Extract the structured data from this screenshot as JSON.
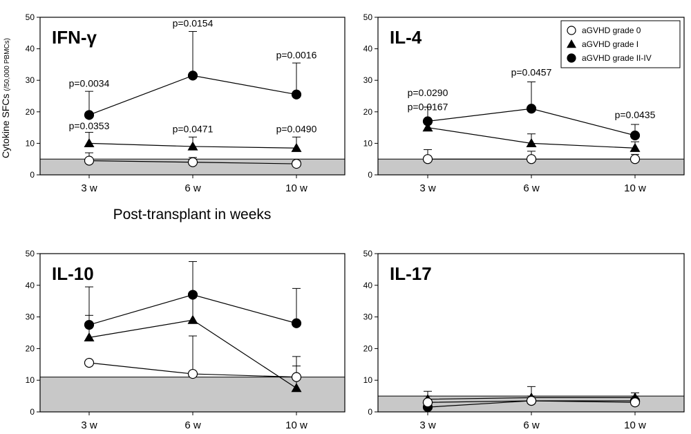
{
  "ylabel": "Cytokine SFCs",
  "ylabel_unit": "(/50,000 PBMCs)",
  "xlabel": "Post-transplant in weeks",
  "colors": {
    "shade": "#c8c8c8",
    "line": "#000000",
    "open_fill": "#ffffff"
  },
  "legend": {
    "placement": "top-right of IL-4 panel",
    "entries": [
      {
        "label": "aGVHD grade 0",
        "marker": "open-circle"
      },
      {
        "label": "aGVHD grade I",
        "marker": "filled-triangle"
      },
      {
        "label": "aGVHD grade II-IV",
        "marker": "filled-circle"
      }
    ]
  },
  "chart_data": [
    {
      "type": "line",
      "title": "IFN-γ",
      "categories": [
        "3 w",
        "6 w",
        "10 w"
      ],
      "ylim": [
        0,
        50
      ],
      "yticks": [
        0,
        10,
        20,
        30,
        40,
        50
      ],
      "threshold": 5,
      "series": [
        {
          "name": "aGVHD grade 0",
          "marker": "open-circle",
          "values": [
            4.5,
            4,
            3.5
          ],
          "errors": [
            2.5,
            1.5,
            1
          ]
        },
        {
          "name": "aGVHD grade I",
          "marker": "filled-triangle",
          "values": [
            10,
            9,
            8.5
          ],
          "errors": [
            3.5,
            3,
            3.5
          ]
        },
        {
          "name": "aGVHD grade II-IV",
          "marker": "filled-circle",
          "values": [
            19,
            31.5,
            25.5
          ],
          "errors": [
            7.5,
            14,
            10
          ]
        }
      ],
      "annotations": [
        {
          "text": "p=0.0034",
          "x": "3 w",
          "y": 28
        },
        {
          "text": "p=0.0154",
          "x": "6 w",
          "y": 47
        },
        {
          "text": "p=0.0016",
          "x": "10 w",
          "y": 37
        },
        {
          "text": "p=0.0353",
          "x": "3 w",
          "y": 14.5
        },
        {
          "text": "p=0.0471",
          "x": "6 w",
          "y": 13.5
        },
        {
          "text": "p=0.0490",
          "x": "10 w",
          "y": 13.5
        }
      ]
    },
    {
      "type": "line",
      "title": "IL-4",
      "categories": [
        "3 w",
        "6 w",
        "10 w"
      ],
      "ylim": [
        0,
        50
      ],
      "yticks": [
        0,
        10,
        20,
        30,
        40,
        50
      ],
      "threshold": 5,
      "series": [
        {
          "name": "aGVHD grade 0",
          "marker": "open-circle",
          "values": [
            5,
            5,
            5
          ],
          "errors": [
            3,
            2.5,
            1.5
          ]
        },
        {
          "name": "aGVHD grade I",
          "marker": "filled-triangle",
          "values": [
            15,
            10,
            8.5
          ],
          "errors": [
            6.5,
            3,
            2
          ]
        },
        {
          "name": "aGVHD grade II-IV",
          "marker": "filled-circle",
          "values": [
            17,
            21,
            12.5
          ],
          "errors": [
            4.5,
            8.5,
            3.5
          ]
        }
      ],
      "annotations": [
        {
          "text": "p=0.0290",
          "x": "3 w",
          "y": 25
        },
        {
          "text": "p=0.0167",
          "x": "3 w",
          "y": 20.5
        },
        {
          "text": "p=0.0457",
          "x": "6 w",
          "y": 31.5
        },
        {
          "text": "p=0.0435",
          "x": "10 w",
          "y": 18
        }
      ]
    },
    {
      "type": "line",
      "title": "IL-10",
      "categories": [
        "3 w",
        "6 w",
        "10 w"
      ],
      "ylim": [
        0,
        50
      ],
      "yticks": [
        0,
        10,
        20,
        30,
        40,
        50
      ],
      "threshold": 11,
      "series": [
        {
          "name": "aGVHD grade 0",
          "marker": "open-circle",
          "values": [
            15.5,
            12,
            11
          ],
          "errors": [
            0,
            12,
            6.5
          ]
        },
        {
          "name": "aGVHD grade I",
          "marker": "filled-triangle",
          "values": [
            23.5,
            29,
            7.5
          ],
          "errors": [
            7,
            8,
            7
          ]
        },
        {
          "name": "aGVHD grade II-IV",
          "marker": "filled-circle",
          "values": [
            27.5,
            37,
            28
          ],
          "errors": [
            12,
            10.5,
            11
          ]
        }
      ],
      "annotations": []
    },
    {
      "type": "line",
      "title": "IL-17",
      "categories": [
        "3 w",
        "6 w",
        "10 w"
      ],
      "ylim": [
        0,
        50
      ],
      "yticks": [
        0,
        10,
        20,
        30,
        40,
        50
      ],
      "threshold": 5,
      "series": [
        {
          "name": "aGVHD grade 0",
          "marker": "open-circle",
          "values": [
            3,
            3.5,
            3
          ],
          "errors": [
            2,
            1.5,
            1
          ]
        },
        {
          "name": "aGVHD grade I",
          "marker": "filled-triangle",
          "values": [
            4,
            4.5,
            4.5
          ],
          "errors": [
            2.5,
            3.5,
            1.5
          ]
        },
        {
          "name": "aGVHD grade II-IV",
          "marker": "filled-circle",
          "values": [
            1.5,
            3.5,
            3.5
          ],
          "errors": [
            1,
            1.5,
            1.5
          ]
        }
      ],
      "annotations": []
    }
  ]
}
